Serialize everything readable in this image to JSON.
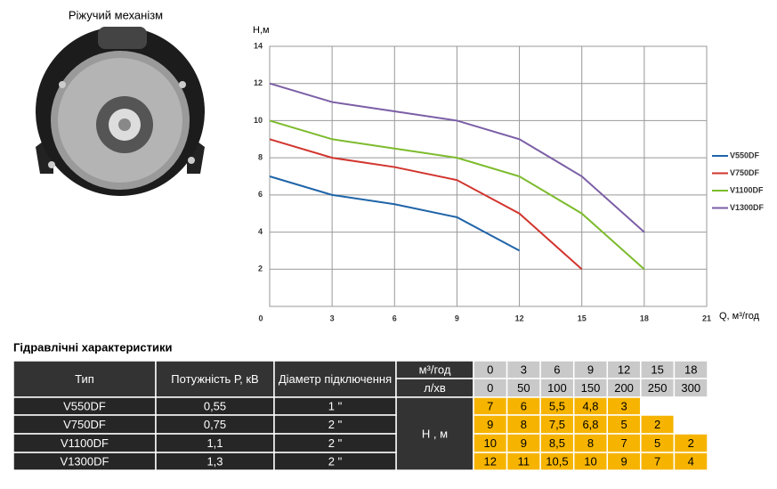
{
  "image_caption": "Ріжучий механізм",
  "chart_data": {
    "type": "line",
    "ylabel": "H,м",
    "xlabel": "Q, м³/год",
    "x": [
      0,
      3,
      6,
      9,
      12,
      15,
      18
    ],
    "series": [
      {
        "name": "V550DF",
        "color": "#1f64a8",
        "values": [
          7,
          6,
          5.5,
          4.8,
          3,
          null,
          null
        ]
      },
      {
        "name": "V750DF",
        "color": "#d2352f",
        "values": [
          9,
          8,
          7.5,
          6.8,
          5,
          2,
          null
        ]
      },
      {
        "name": "V1100DF",
        "color": "#7cbb2c",
        "values": [
          10,
          9,
          8.5,
          8,
          7,
          5,
          2
        ]
      },
      {
        "name": "V1300DF",
        "color": "#7b5ea6",
        "values": [
          12,
          11,
          10.5,
          10,
          9,
          7,
          4
        ]
      }
    ],
    "xlim": [
      0,
      21
    ],
    "xticks": [
      0,
      3,
      6,
      9,
      12,
      15,
      18,
      21
    ],
    "ylim": [
      0,
      14
    ],
    "yticks": [
      2,
      4,
      6,
      8,
      10,
      12,
      14
    ],
    "grid": true,
    "legend": "right"
  },
  "table": {
    "title": "Гідравлічні характеристики",
    "header": [
      "Тип",
      "Потужність Р, кВ",
      "Діаметр підключення"
    ],
    "flow_units": [
      "м³/год",
      "л/хв"
    ],
    "flows": [
      [
        "0",
        "3",
        "6",
        "9",
        "12",
        "15",
        "18"
      ],
      [
        "0",
        "50",
        "100",
        "150",
        "200",
        "250",
        "300"
      ]
    ],
    "head_unit": "H , м",
    "rows": [
      {
        "type": "V550DF",
        "power": "0,55",
        "diameter": "1 \"",
        "heads": [
          "7",
          "6",
          "5,5",
          "4,8",
          "3"
        ]
      },
      {
        "type": "V750DF",
        "power": "0,75",
        "diameter": "2 \"",
        "heads": [
          "9",
          "8",
          "7,5",
          "6,8",
          "5",
          "2"
        ]
      },
      {
        "type": "V1100DF",
        "power": "1,1",
        "diameter": "2 \"",
        "heads": [
          "10",
          "9",
          "8,5",
          "8",
          "7",
          "5",
          "2"
        ]
      },
      {
        "type": "V1300DF",
        "power": "1,3",
        "diameter": "2 \"",
        "heads": [
          "12",
          "11",
          "10,5",
          "10",
          "9",
          "7",
          "4"
        ]
      }
    ]
  }
}
